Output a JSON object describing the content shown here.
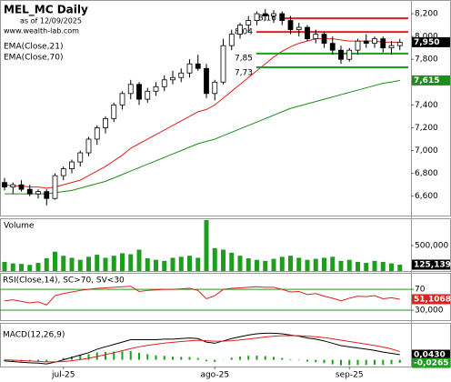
{
  "chart_data": {
    "type": "candlestick",
    "title": "MEL_MC Daily",
    "subtitle": "as of 12/09/2025",
    "source": "www.wealth-lab.com",
    "categories": [
      null,
      null,
      null,
      null,
      null,
      null,
      null,
      "jul-25",
      null,
      null,
      null,
      null,
      null,
      null,
      null,
      null,
      null,
      null,
      null,
      null,
      null,
      null,
      null,
      null,
      null,
      "ago-25",
      null,
      null,
      null,
      null,
      null,
      null,
      null,
      null,
      null,
      null,
      null,
      null,
      null,
      null,
      null,
      "sep-25",
      null,
      null,
      null,
      null,
      null,
      null
    ],
    "open": [
      6.72,
      6.68,
      6.7,
      6.66,
      6.62,
      6.64,
      6.58,
      6.78,
      6.84,
      6.9,
      6.98,
      7.1,
      7.2,
      7.28,
      7.4,
      7.5,
      7.58,
      7.45,
      7.52,
      7.56,
      7.62,
      7.64,
      7.68,
      7.76,
      7.72,
      7.5,
      7.6,
      7.92,
      8.02,
      8.1,
      8.14,
      8.2,
      8.18,
      8.2,
      8.14,
      8.06,
      8.08,
      7.98,
      8.02,
      7.94,
      7.88,
      7.8,
      7.88,
      7.96,
      7.94,
      7.98,
      7.9,
      7.92
    ],
    "high": [
      6.76,
      6.72,
      6.74,
      6.7,
      6.66,
      6.66,
      6.8,
      6.86,
      6.92,
      7.0,
      7.12,
      7.22,
      7.3,
      7.42,
      7.52,
      7.62,
      7.6,
      7.55,
      7.6,
      7.66,
      7.7,
      7.72,
      7.8,
      7.84,
      7.76,
      7.62,
      7.98,
      8.06,
      8.12,
      8.18,
      8.22,
      8.24,
      8.23,
      8.22,
      8.18,
      8.12,
      8.1,
      8.06,
      8.04,
      8.0,
      7.92,
      7.9,
      7.98,
      8.02,
      8.0,
      8.0,
      7.96,
      7.98
    ],
    "low": [
      6.65,
      6.62,
      6.64,
      6.6,
      6.58,
      6.52,
      6.57,
      6.74,
      6.8,
      6.86,
      6.95,
      7.05,
      7.15,
      7.25,
      7.36,
      7.45,
      7.4,
      7.42,
      7.48,
      7.52,
      7.58,
      7.6,
      7.64,
      7.7,
      7.46,
      7.44,
      7.58,
      7.88,
      7.98,
      8.04,
      8.1,
      8.14,
      8.12,
      8.1,
      8.02,
      8.0,
      7.96,
      7.94,
      7.9,
      7.84,
      7.76,
      7.78,
      7.84,
      7.9,
      7.9,
      7.86,
      7.84,
      7.88
    ],
    "close": [
      6.68,
      6.7,
      6.66,
      6.62,
      6.64,
      6.58,
      6.78,
      6.84,
      6.9,
      6.98,
      7.1,
      7.2,
      7.28,
      7.4,
      7.5,
      7.58,
      7.45,
      7.52,
      7.56,
      7.62,
      7.64,
      7.68,
      7.76,
      7.72,
      7.5,
      7.6,
      7.92,
      8.02,
      8.1,
      8.14,
      8.2,
      8.18,
      8.2,
      8.14,
      8.06,
      8.08,
      7.98,
      8.02,
      7.94,
      7.88,
      7.8,
      7.88,
      7.96,
      7.94,
      7.98,
      7.9,
      7.92,
      7.95
    ],
    "close_last_label": "7,950",
    "ylim": [
      6.43,
      8.32
    ],
    "yticks": [
      {
        "value": 6.6,
        "label": "6,600"
      },
      {
        "value": 6.8,
        "label": "6,800"
      },
      {
        "value": 7.0,
        "label": "7,000"
      },
      {
        "value": 7.2,
        "label": "7,200"
      },
      {
        "value": 7.4,
        "label": "7,400"
      },
      {
        "value": 7.6,
        "label": "7,600"
      },
      {
        "value": 7.8,
        "label": "7,800"
      },
      {
        "value": 8.0,
        "label": "8,000"
      },
      {
        "value": 8.2,
        "label": "8,200"
      }
    ],
    "series": [
      {
        "name": "EMA(Close,21)",
        "color": "#e02020",
        "values": [
          6.7,
          6.69,
          6.69,
          6.68,
          6.68,
          6.67,
          6.68,
          6.7,
          6.72,
          6.74,
          6.78,
          6.82,
          6.86,
          6.91,
          6.96,
          7.02,
          7.06,
          7.1,
          7.14,
          7.18,
          7.22,
          7.26,
          7.3,
          7.34,
          7.36,
          7.4,
          7.46,
          7.52,
          7.58,
          7.64,
          7.7,
          7.76,
          7.82,
          7.87,
          7.91,
          7.94,
          7.96,
          7.98,
          7.98,
          7.98,
          7.97,
          7.96,
          7.96,
          7.96,
          7.96,
          7.95,
          7.95,
          7.95
        ]
      },
      {
        "name": "EMA(Close,70)",
        "color": "#1e8c1e",
        "last_label": "7,615",
        "values": [
          6.62,
          6.62,
          6.62,
          6.62,
          6.62,
          6.62,
          6.63,
          6.64,
          6.65,
          6.67,
          6.69,
          6.71,
          6.73,
          6.76,
          6.79,
          6.82,
          6.85,
          6.88,
          6.91,
          6.94,
          6.97,
          7.0,
          7.03,
          7.06,
          7.08,
          7.1,
          7.13,
          7.16,
          7.19,
          7.22,
          7.25,
          7.28,
          7.31,
          7.34,
          7.37,
          7.39,
          7.41,
          7.43,
          7.45,
          7.47,
          7.49,
          7.51,
          7.53,
          7.55,
          7.57,
          7.59,
          7.6,
          7.615
        ]
      }
    ],
    "levels": [
      {
        "label": "8,16",
        "value": 8.16,
        "color": "#e02020"
      },
      {
        "label": "8,04",
        "value": 8.04,
        "color": "#e02020"
      },
      {
        "label": "7,85",
        "value": 7.85,
        "color": "#1e9e1e"
      },
      {
        "label": "7,73",
        "value": 7.73,
        "color": "#1e9e1e"
      }
    ],
    "volume": {
      "title": "Volume",
      "color": "#1e9e1e",
      "last_label": "125,139",
      "values": [
        180000,
        150000,
        140000,
        120000,
        160000,
        250000,
        380000,
        300000,
        260000,
        220000,
        280000,
        320000,
        260000,
        300000,
        350000,
        330000,
        420000,
        250000,
        220000,
        200000,
        260000,
        280000,
        300000,
        260000,
        1000000,
        450000,
        420000,
        360000,
        300000,
        250000,
        220000,
        200000,
        240000,
        280000,
        300000,
        260000,
        220000,
        240000,
        260000,
        280000,
        200000,
        220000,
        180000,
        160000,
        200000,
        180000,
        150000,
        125139
      ],
      "ylim": [
        0,
        1000000
      ],
      "yticks": [
        {
          "value": 500000,
          "label": "500,000"
        }
      ]
    },
    "rsi": {
      "title": "RSI(Close,14), SC>70, SV<30",
      "color": "#e02020",
      "level_color": "#1e9e1e",
      "last_label": "51,1068",
      "values": [
        48,
        50,
        47,
        44,
        46,
        40,
        58,
        62,
        65,
        68,
        70,
        72,
        73,
        74,
        75,
        76,
        66,
        68,
        69,
        70,
        70,
        71,
        72,
        68,
        52,
        58,
        70,
        72,
        73,
        74,
        75,
        74,
        74,
        70,
        65,
        66,
        60,
        62,
        57,
        53,
        48,
        53,
        57,
        56,
        58,
        52,
        54,
        51.1068
      ],
      "ylim": [
        10,
        100
      ],
      "yticks": [
        70,
        {
          "value": 30,
          "label": "30,000"
        }
      ]
    },
    "macd": {
      "title": "MACD(12,26,9)",
      "ylim": [
        -0.057,
        0.305
      ],
      "macd": {
        "color": "#000000",
        "last_label": "0,0430",
        "values": [
          -0.01,
          -0.015,
          -0.02,
          -0.025,
          -0.028,
          -0.035,
          -0.02,
          0.0,
          0.02,
          0.04,
          0.06,
          0.09,
          0.11,
          0.13,
          0.15,
          0.17,
          0.17,
          0.17,
          0.17,
          0.175,
          0.175,
          0.18,
          0.185,
          0.18,
          0.15,
          0.14,
          0.16,
          0.18,
          0.195,
          0.21,
          0.22,
          0.225,
          0.225,
          0.22,
          0.21,
          0.2,
          0.185,
          0.175,
          0.16,
          0.14,
          0.12,
          0.11,
          0.1,
          0.09,
          0.08,
          0.065,
          0.055,
          0.043
        ]
      },
      "signal": {
        "color": "#e02020",
        "values": [
          0.0,
          -0.003,
          -0.006,
          -0.01,
          -0.014,
          -0.018,
          -0.018,
          -0.015,
          -0.008,
          0.002,
          0.013,
          0.028,
          0.044,
          0.06,
          0.078,
          0.095,
          0.11,
          0.122,
          0.132,
          0.141,
          0.148,
          0.155,
          0.161,
          0.165,
          0.162,
          0.158,
          0.158,
          0.162,
          0.168,
          0.176,
          0.185,
          0.193,
          0.2,
          0.204,
          0.205,
          0.204,
          0.2,
          0.195,
          0.188,
          0.178,
          0.166,
          0.155,
          0.144,
          0.133,
          0.121,
          0.108,
          0.092,
          0.0695
        ]
      },
      "histogram": {
        "color": "#1e9e1e",
        "last_label": "-0,0265",
        "values": [
          -0.01,
          -0.012,
          -0.014,
          -0.015,
          -0.014,
          -0.017,
          -0.002,
          0.015,
          0.028,
          0.038,
          0.047,
          0.062,
          0.066,
          0.07,
          0.072,
          0.075,
          0.06,
          0.048,
          0.038,
          0.034,
          0.027,
          0.025,
          0.024,
          0.015,
          -0.012,
          -0.018,
          0.002,
          0.018,
          0.027,
          0.034,
          0.035,
          0.032,
          0.025,
          0.016,
          0.005,
          -0.004,
          -0.015,
          -0.02,
          -0.028,
          -0.038,
          -0.046,
          -0.045,
          -0.044,
          -0.043,
          -0.041,
          -0.043,
          -0.037,
          -0.0265
        ]
      }
    }
  }
}
